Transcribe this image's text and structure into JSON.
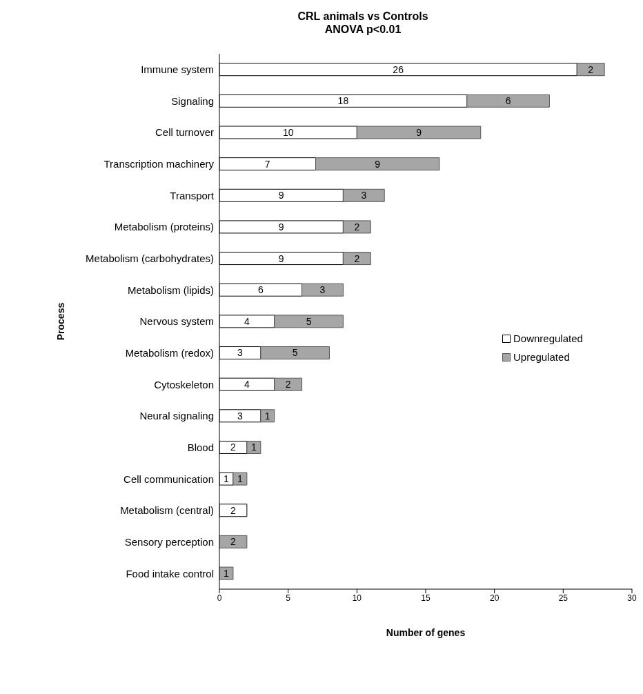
{
  "chart_data": {
    "type": "bar",
    "orientation": "horizontal",
    "stacked": true,
    "title": "CRL animals vs Controls",
    "subtitle": "ANOVA p<0.01",
    "xlabel": "Number of genes",
    "ylabel": "Process",
    "categories": [
      "Immune system",
      "Signaling",
      "Cell turnover",
      "Transcription machinery",
      "Transport",
      "Metabolism (proteins)",
      "Metabolism (carbohydrates)",
      "Metabolism (lipids)",
      "Nervous system",
      "Metabolism (redox)",
      "Cytoskeleton",
      "Neural signaling",
      "Blood",
      "Cell communication",
      "Metabolism (central)",
      "Sensory perception",
      "Food intake control"
    ],
    "series": [
      {
        "name": "Downregulated",
        "color": "#ffffff",
        "values": [
          26,
          18,
          10,
          7,
          9,
          9,
          9,
          6,
          4,
          3,
          4,
          3,
          2,
          1,
          2,
          null,
          null
        ]
      },
      {
        "name": "Upregulated",
        "color": "#a6a6a6",
        "values": [
          2,
          6,
          9,
          9,
          3,
          2,
          2,
          3,
          5,
          5,
          2,
          1,
          1,
          1,
          null,
          2,
          1
        ]
      }
    ],
    "xlim": [
      0,
      30
    ],
    "xticks": [
      0,
      5,
      10,
      15,
      20,
      25,
      30
    ],
    "grid": false,
    "legend": "right",
    "data_labels": true
  }
}
